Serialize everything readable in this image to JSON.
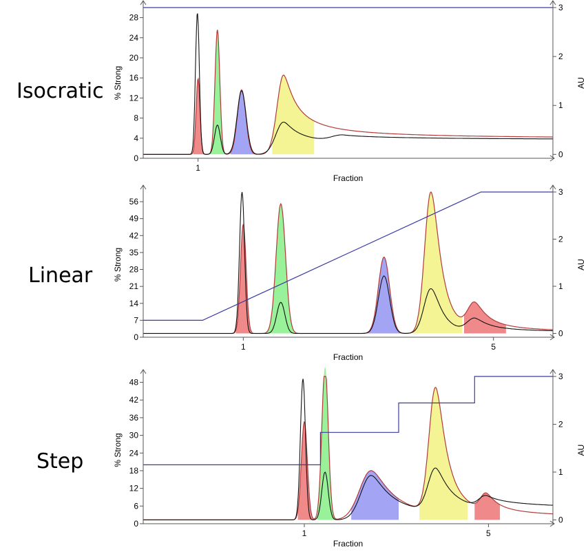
{
  "chart_data": [
    {
      "type": "line",
      "panel_label": "Isocratic",
      "xlabel": "Fraction",
      "ylabel_left": "% Strong",
      "ylabel_right": "AU",
      "x_ticks": [
        {
          "x": 1,
          "label": "1"
        }
      ],
      "xlim": [
        -0.7,
        12.0
      ],
      "y_left_ticks": [
        "0",
        "4",
        "8",
        "12",
        "16",
        "20",
        "24",
        "28"
      ],
      "y_left_lim": [
        0,
        30
      ],
      "y_right_ticks": [
        "0",
        "1",
        "2",
        "3"
      ],
      "y_right_lim": [
        -0.08,
        3.0
      ],
      "gradient": [
        [
          -0.7,
          30
        ],
        [
          12.0,
          30
        ]
      ],
      "baseline": 0.0,
      "peaks": [
        {
          "fill": "#f08a8a",
          "from": 0.85,
          "to": 1.22,
          "center": 1.0,
          "height": 1.55,
          "width": 0.06
        },
        {
          "fill": "#99f199",
          "from": 1.37,
          "to": 1.85,
          "center": 1.6,
          "height": 2.55,
          "width": 0.075
        },
        {
          "fill": "#a4a4f4",
          "from": 2.0,
          "to": 2.75,
          "center": 2.35,
          "height": 1.32,
          "width": 0.13
        },
        {
          "fill": "#f4f494",
          "from": 3.3,
          "to": 4.6,
          "center": 3.65,
          "height": 1.62,
          "width": 0.2,
          "tail": 0.55
        }
      ],
      "trace_black": [
        {
          "center": 0.98,
          "height": 2.9,
          "width": 0.06
        },
        {
          "center": 1.6,
          "height": 0.6,
          "width": 0.09
        },
        {
          "center": 2.35,
          "height": 1.3,
          "width": 0.14
        },
        {
          "center": 3.65,
          "height": 0.66,
          "width": 0.24,
          "tail": 0.6
        },
        {
          "center": 5.5,
          "height": 0.14,
          "width": 0.35,
          "tail": 2.5
        }
      ]
    },
    {
      "type": "line",
      "panel_label": "Linear",
      "xlabel": "Fraction",
      "ylabel_left": "% Strong",
      "ylabel_right": "AU",
      "x_ticks": [
        {
          "x": 1,
          "label": "1"
        },
        {
          "x": 5,
          "label": "5"
        }
      ],
      "xlim": [
        -0.6,
        5.95
      ],
      "y_left_ticks": [
        "0",
        "7",
        "14",
        "21",
        "28",
        "35",
        "42",
        "49",
        "56"
      ],
      "y_left_lim": [
        0,
        60
      ],
      "y_right_ticks": [
        "0",
        "1",
        "2",
        "3"
      ],
      "y_right_lim": [
        -0.08,
        3.0
      ],
      "gradient": [
        [
          -0.6,
          7
        ],
        [
          0.35,
          7
        ],
        [
          4.8,
          60
        ],
        [
          5.95,
          60
        ]
      ],
      "baseline": 0.0,
      "peaks": [
        {
          "fill": "#f08a8a",
          "from": 0.88,
          "to": 1.13,
          "center": 1.0,
          "height": 2.32,
          "width": 0.045
        },
        {
          "fill": "#99f199",
          "from": 1.37,
          "to": 1.82,
          "center": 1.6,
          "height": 2.75,
          "width": 0.075
        },
        {
          "fill": "#a4a4f4",
          "from": 2.95,
          "to": 3.58,
          "center": 3.25,
          "height": 1.62,
          "width": 0.09
        },
        {
          "fill": "#f4f494",
          "from": 3.7,
          "to": 4.5,
          "center": 4.0,
          "height": 3.0,
          "width": 0.1,
          "tail": 0.25
        },
        {
          "fill": "#f08a8a",
          "from": 4.53,
          "to": 5.2,
          "center": 4.7,
          "height": 0.55,
          "width": 0.11,
          "tail": 0.4
        }
      ],
      "trace_black": [
        {
          "center": 0.98,
          "height": 3.0,
          "width": 0.04
        },
        {
          "center": 1.6,
          "height": 0.66,
          "width": 0.065
        },
        {
          "center": 3.25,
          "height": 1.22,
          "width": 0.09
        },
        {
          "center": 4.0,
          "height": 0.95,
          "width": 0.11,
          "tail": 0.25
        },
        {
          "center": 4.7,
          "height": 0.28,
          "width": 0.12,
          "tail": 0.45
        }
      ]
    },
    {
      "type": "line",
      "panel_label": "Step",
      "xlabel": "Fraction",
      "ylabel_left": "% Strong",
      "ylabel_right": "AU",
      "x_ticks": [
        {
          "x": 1,
          "label": "1"
        },
        {
          "x": 5,
          "label": "5"
        }
      ],
      "xlim": [
        -2.5,
        6.4
      ],
      "y_left_ticks": [
        "0",
        "6",
        "12",
        "18",
        "24",
        "30",
        "36",
        "42",
        "48"
      ],
      "y_left_lim": [
        0,
        50
      ],
      "y_right_ticks": [
        "0",
        "1",
        "2",
        "3"
      ],
      "y_right_lim": [
        -0.08,
        3.0
      ],
      "gradient": [
        [
          -2.5,
          20
        ],
        [
          1.35,
          20
        ],
        [
          1.35,
          31
        ],
        [
          3.05,
          31
        ],
        [
          3.05,
          41
        ],
        [
          4.7,
          41
        ],
        [
          4.7,
          50
        ],
        [
          6.4,
          50
        ]
      ],
      "baseline": 0.0,
      "peaks": [
        {
          "fill": "#f08a8a",
          "from": 0.86,
          "to": 1.2,
          "center": 1.0,
          "height": 2.05,
          "width": 0.065
        },
        {
          "fill": "#99f199",
          "from": 1.28,
          "to": 1.75,
          "center": 1.45,
          "height": 3.2,
          "width": 0.07
        },
        {
          "fill": "#a4a4f4",
          "from": 2.02,
          "to": 3.05,
          "center": 2.45,
          "height": 1.03,
          "width": 0.25,
          "tail": 0.35
        },
        {
          "fill": "#f4f494",
          "from": 3.5,
          "to": 4.55,
          "center": 3.85,
          "height": 2.6,
          "width": 0.14,
          "tail": 0.28
        },
        {
          "fill": "#f08a8a",
          "from": 4.7,
          "to": 5.25,
          "center": 4.95,
          "height": 0.35,
          "width": 0.12,
          "tail": 0.4
        }
      ],
      "trace_black": [
        {
          "center": 0.97,
          "height": 2.95,
          "width": 0.055
        },
        {
          "center": 1.45,
          "height": 1.0,
          "width": 0.07
        },
        {
          "center": 2.45,
          "height": 0.93,
          "width": 0.22,
          "tail": 0.4
        },
        {
          "center": 3.85,
          "height": 0.9,
          "width": 0.16,
          "tail": 0.38
        },
        {
          "center": 4.95,
          "height": 0.25,
          "width": 0.15,
          "tail": 0.9
        }
      ]
    }
  ]
}
